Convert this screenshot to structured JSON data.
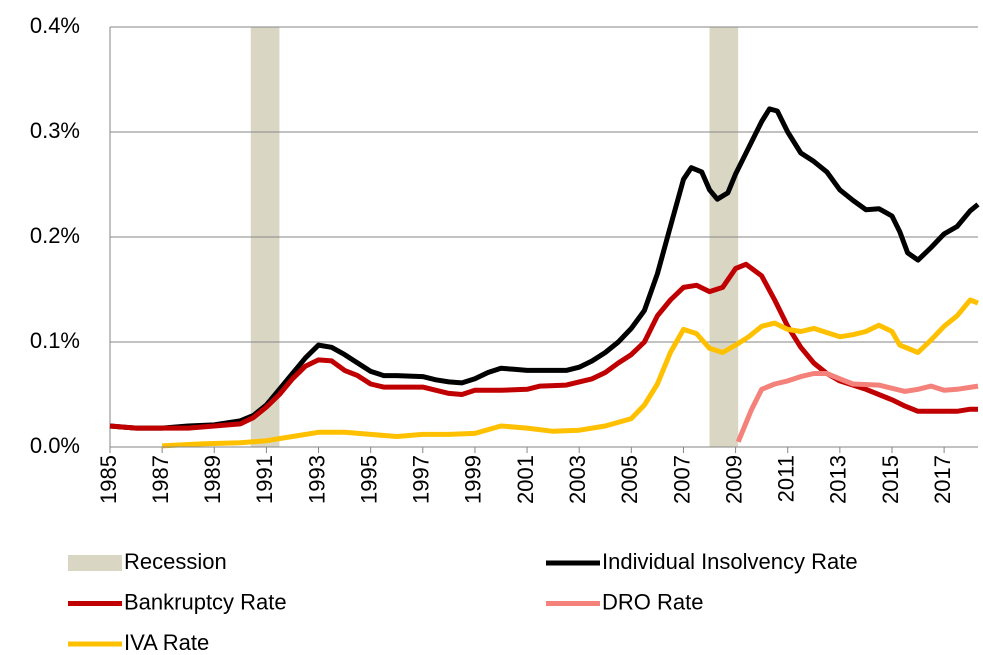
{
  "chart_data": {
    "type": "line",
    "bands": {
      "name": "Recession",
      "color": "#d9d7c4",
      "ranges": [
        [
          1990.4,
          1991.5
        ],
        [
          2008.0,
          2009.1
        ]
      ]
    },
    "series": [
      {
        "name": "Individual Insolvency Rate",
        "color": "#000000",
        "x": [
          1985,
          1986,
          1987,
          1988,
          1989,
          1990,
          1990.5,
          1991,
          1991.5,
          1992,
          1992.5,
          1993,
          1993.5,
          1994,
          1994.5,
          1995,
          1995.5,
          1996,
          1997,
          1997.5,
          1998,
          1998.5,
          1999,
          1999.5,
          2000,
          2000.5,
          2001,
          2002,
          2002.5,
          2003,
          2003.5,
          2004,
          2004.5,
          2005,
          2005.5,
          2006,
          2006.5,
          2007,
          2007.3,
          2007.7,
          2008,
          2008.3,
          2008.7,
          2009,
          2009.5,
          2010,
          2010.3,
          2010.6,
          2011,
          2011.5,
          2012,
          2012.5,
          2013,
          2013.5,
          2014,
          2014.5,
          2015,
          2015.3,
          2015.6,
          2016,
          2016.5,
          2017,
          2017.5,
          2018,
          2018.3
        ],
        "values": [
          0.02,
          0.018,
          0.018,
          0.02,
          0.021,
          0.025,
          0.03,
          0.04,
          0.055,
          0.07,
          0.085,
          0.097,
          0.095,
          0.088,
          0.08,
          0.072,
          0.068,
          0.068,
          0.067,
          0.064,
          0.062,
          0.061,
          0.065,
          0.071,
          0.075,
          0.074,
          0.073,
          0.073,
          0.073,
          0.076,
          0.082,
          0.09,
          0.1,
          0.113,
          0.13,
          0.165,
          0.21,
          0.255,
          0.266,
          0.262,
          0.245,
          0.236,
          0.242,
          0.26,
          0.285,
          0.31,
          0.322,
          0.32,
          0.3,
          0.28,
          0.272,
          0.262,
          0.245,
          0.235,
          0.226,
          0.227,
          0.22,
          0.205,
          0.185,
          0.178,
          0.19,
          0.203,
          0.21,
          0.225,
          0.231
        ]
      },
      {
        "name": "Bankruptcy Rate",
        "color": "#c00000",
        "x": [
          1985,
          1986,
          1988,
          1989,
          1990,
          1990.5,
          1991,
          1991.5,
          1992,
          1992.5,
          1993,
          1993.5,
          1994,
          1994.5,
          1995,
          1995.5,
          1997,
          1998,
          1998.5,
          1999,
          2000,
          2001,
          2001.5,
          2002.5,
          2003,
          2003.5,
          2004,
          2004.5,
          2005,
          2005.5,
          2006,
          2006.5,
          2007,
          2007.5,
          2008,
          2008.5,
          2009,
          2009.4,
          2010,
          2010.5,
          2011,
          2011.5,
          2012,
          2012.5,
          2013,
          2014,
          2015,
          2015.5,
          2016,
          2017,
          2017.5,
          2018,
          2018.3
        ],
        "values": [
          0.02,
          0.018,
          0.018,
          0.02,
          0.022,
          0.028,
          0.038,
          0.05,
          0.065,
          0.077,
          0.083,
          0.082,
          0.073,
          0.068,
          0.06,
          0.057,
          0.057,
          0.051,
          0.05,
          0.054,
          0.054,
          0.055,
          0.058,
          0.059,
          0.062,
          0.065,
          0.071,
          0.08,
          0.088,
          0.1,
          0.125,
          0.14,
          0.152,
          0.154,
          0.148,
          0.152,
          0.17,
          0.174,
          0.163,
          0.14,
          0.115,
          0.095,
          0.08,
          0.07,
          0.063,
          0.055,
          0.045,
          0.039,
          0.034,
          0.034,
          0.034,
          0.036,
          0.036
        ]
      },
      {
        "name": "DRO Rate",
        "color": "#f4817a",
        "x": [
          2009.1,
          2009.6,
          2010,
          2010.5,
          2011,
          2011.5,
          2012,
          2012.5,
          2013,
          2013.5,
          2014.5,
          2015.5,
          2016,
          2016.5,
          2017,
          2017.5,
          2018.3
        ],
        "values": [
          0.005,
          0.035,
          0.055,
          0.06,
          0.063,
          0.067,
          0.07,
          0.07,
          0.065,
          0.06,
          0.059,
          0.053,
          0.055,
          0.058,
          0.054,
          0.055,
          0.058
        ]
      },
      {
        "name": "IVA Rate",
        "color": "#ffc000",
        "x": [
          1987,
          1988.5,
          1990,
          1991,
          1992,
          1993,
          1994,
          1995,
          1996,
          1997,
          1998,
          1999,
          2000,
          2001,
          2002,
          2003,
          2004,
          2005,
          2005.5,
          2006,
          2006.5,
          2007,
          2007.5,
          2008,
          2008.5,
          2009,
          2009.5,
          2010,
          2010.5,
          2011,
          2011.5,
          2012,
          2013,
          2013.5,
          2014,
          2014.5,
          2015,
          2015.3,
          2016,
          2016.5,
          2017,
          2017.5,
          2018,
          2018.3
        ],
        "values": [
          0.001,
          0.003,
          0.004,
          0.006,
          0.01,
          0.014,
          0.014,
          0.012,
          0.01,
          0.012,
          0.012,
          0.013,
          0.02,
          0.018,
          0.015,
          0.016,
          0.02,
          0.027,
          0.04,
          0.06,
          0.09,
          0.112,
          0.108,
          0.094,
          0.09,
          0.097,
          0.105,
          0.115,
          0.118,
          0.112,
          0.11,
          0.113,
          0.105,
          0.107,
          0.11,
          0.116,
          0.11,
          0.097,
          0.09,
          0.102,
          0.115,
          0.125,
          0.14,
          0.137
        ]
      }
    ],
    "xlim": [
      1985,
      2018.3
    ],
    "xticks": [
      1985,
      1987,
      1989,
      1991,
      1993,
      1995,
      1997,
      1999,
      2001,
      2003,
      2005,
      2007,
      2009,
      2011,
      2013,
      2015,
      2017
    ],
    "ylim": [
      0,
      0.4
    ],
    "yticks": [
      {
        "value": 0,
        "label": "0.0%"
      },
      {
        "value": 0.1,
        "label": "0.1%"
      },
      {
        "value": 0.2,
        "label": "0.2%"
      },
      {
        "value": 0.3,
        "label": "0.3%"
      },
      {
        "value": 0.4,
        "label": "0.4%"
      }
    ],
    "grid": true
  }
}
